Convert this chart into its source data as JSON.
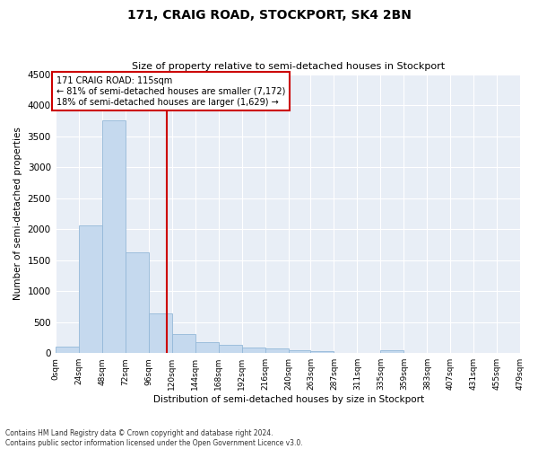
{
  "title": "171, CRAIG ROAD, STOCKPORT, SK4 2BN",
  "subtitle": "Size of property relative to semi-detached houses in Stockport",
  "xlabel": "Distribution of semi-detached houses by size in Stockport",
  "ylabel": "Number of semi-detached properties",
  "footnote1": "Contains HM Land Registry data © Crown copyright and database right 2024.",
  "footnote2": "Contains public sector information licensed under the Open Government Licence v3.0.",
  "annotation_title": "171 CRAIG ROAD: 115sqm",
  "annotation_line1": "← 81% of semi-detached houses are smaller (7,172)",
  "annotation_line2": "18% of semi-detached houses are larger (1,629) →",
  "property_size": 115,
  "bins": [
    0,
    24,
    48,
    72,
    96,
    120,
    144,
    168,
    192,
    216,
    240,
    263,
    287,
    311,
    335,
    359,
    383,
    407,
    431,
    455,
    479
  ],
  "bin_labels": [
    "0sqm",
    "24sqm",
    "48sqm",
    "72sqm",
    "96sqm",
    "120sqm",
    "144sqm",
    "168sqm",
    "192sqm",
    "216sqm",
    "240sqm",
    "263sqm",
    "287sqm",
    "311sqm",
    "335sqm",
    "359sqm",
    "383sqm",
    "407sqm",
    "431sqm",
    "455sqm",
    "479sqm"
  ],
  "counts": [
    100,
    2060,
    3750,
    1620,
    640,
    300,
    175,
    130,
    95,
    70,
    45,
    30,
    5,
    5,
    50,
    5,
    5,
    5,
    0,
    0
  ],
  "bar_color": "#c5d9ee",
  "bar_edge_color": "#94b8d8",
  "line_color": "#cc0000",
  "background_color": "#e8eef6",
  "ylim": [
    0,
    4500
  ],
  "yticks": [
    0,
    500,
    1000,
    1500,
    2000,
    2500,
    3000,
    3500,
    4000,
    4500
  ]
}
